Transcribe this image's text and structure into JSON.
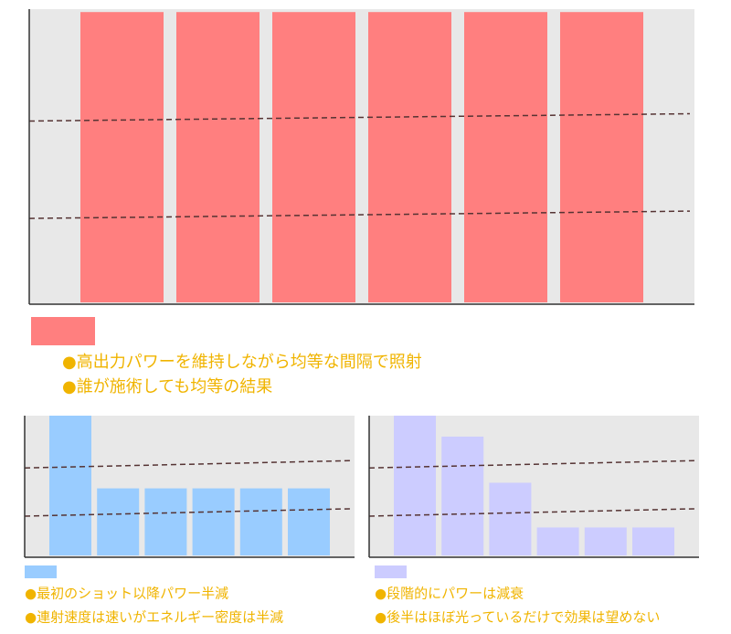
{
  "chart_data": [
    {
      "type": "bar",
      "color": "#ff7f7f",
      "values": [
        99,
        99,
        99,
        99,
        99,
        99
      ],
      "ylim": [
        0,
        100
      ],
      "notes": [
        "●高出力パワーを維持しながら均等な間隔で照射",
        "●誰が施術しても均等の結果"
      ]
    },
    {
      "type": "bar",
      "color": "#99ccff",
      "values": [
        100,
        48,
        48,
        48,
        48,
        48
      ],
      "ylim": [
        0,
        100
      ],
      "notes": [
        "●最初のショット以降パワー半減",
        "●連射速度は速いがエネルギー密度は半減"
      ]
    },
    {
      "type": "bar",
      "color": "#ccccff",
      "values": [
        100,
        85,
        52,
        20,
        20,
        20
      ],
      "ylim": [
        0,
        100
      ],
      "notes": [
        "●段階的にパワーは減衰",
        "●後半はほぼ光っているだけで効果は望めない"
      ]
    }
  ]
}
